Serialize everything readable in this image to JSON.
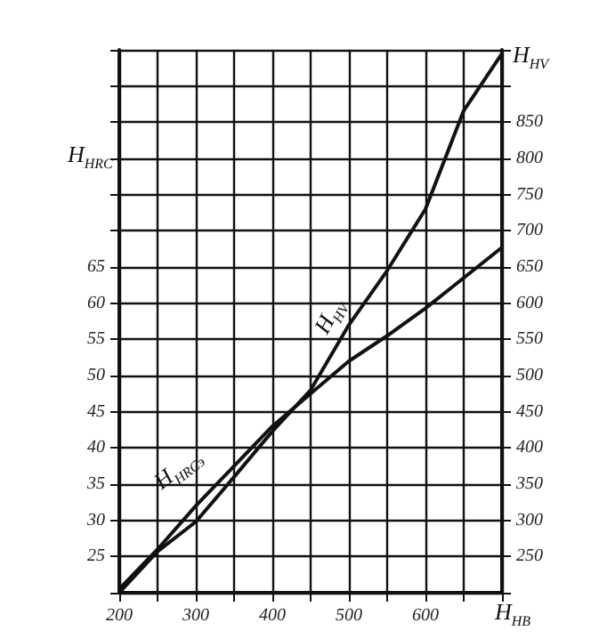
{
  "chart_data": {
    "type": "line",
    "xlabel": "H$_{HB}$",
    "ylabel": "H$_{HRC}$",
    "y2label": "H$_{HV}$",
    "series": [
      {
        "name": "H$_{HRCэ}$",
        "color": "#111111",
        "x": [
          200,
          250,
          300,
          350,
          400,
          450,
          500,
          550,
          600,
          650,
          700
        ],
        "values": [
          20.5,
          26,
          32,
          37.5,
          43,
          47.5,
          52,
          55.5,
          59.3,
          63.5,
          67.7
        ]
      },
      {
        "name": "H$_{HV}$",
        "color": "#111111",
        "axis": "y2",
        "x": [
          200,
          250,
          300,
          350,
          400,
          450,
          500,
          550,
          600,
          650,
          700
        ],
        "values": [
          200,
          257,
          298,
          360,
          423,
          480,
          570,
          645,
          730,
          866,
          945
        ]
      }
    ],
    "xlim": [
      200,
      700
    ],
    "xticks": [
      200,
      {
        "value": 250,
        "label": null
      },
      300,
      {
        "value": 350,
        "label": null
      },
      400,
      {
        "value": 450,
        "label": null
      },
      500,
      {
        "value": 550,
        "label": null
      },
      600,
      {
        "value": 650,
        "label": null
      },
      {
        "value": 700,
        "label": null
      }
    ],
    "ylim": [
      20,
      95
    ],
    "yticks": [
      {
        "value": 20,
        "label": null
      },
      25,
      30,
      35,
      40,
      45,
      50,
      55,
      60,
      65,
      {
        "value": 70,
        "label": null
      },
      {
        "value": 75,
        "label": null
      },
      {
        "value": 80,
        "label": null
      },
      {
        "value": 85,
        "label": null
      },
      {
        "value": 90,
        "label": null
      },
      {
        "value": 95,
        "label": null
      }
    ],
    "y2lim": [
      200,
      950
    ],
    "y2ticks": [
      {
        "value": 200,
        "label": null
      },
      250,
      300,
      350,
      400,
      450,
      500,
      550,
      600,
      650,
      700,
      750,
      800,
      850,
      {
        "value": 900,
        "label": null
      },
      {
        "value": 950,
        "label": null
      }
    ],
    "grid": true,
    "marker": "none",
    "line_style": "solid"
  }
}
